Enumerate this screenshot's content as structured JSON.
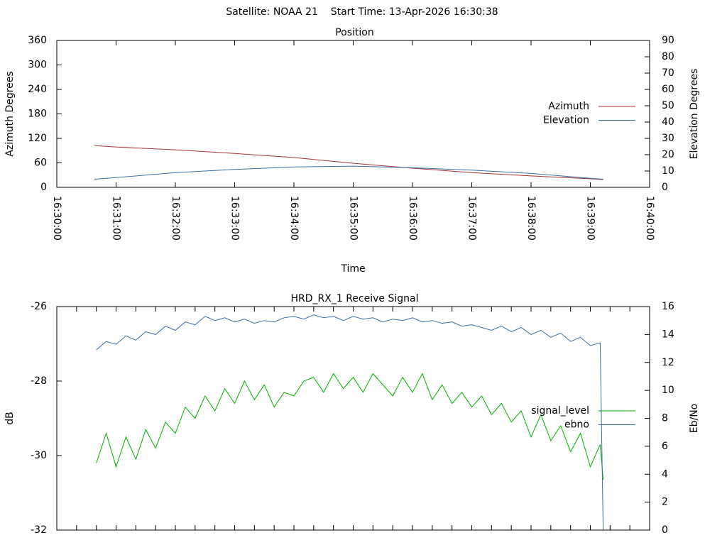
{
  "page_title": "Satellite: NOAA 21    Start Time: 13-Apr-2026 16:30:38",
  "chart_data": [
    {
      "type": "line",
      "title": "Position",
      "xlabel": "Time",
      "ylabel": "Azimuth Degrees",
      "y2label": "Elevation Degrees",
      "xlim": [
        "16:30:00",
        "16:40:00"
      ],
      "xticks": [
        "16:30:00",
        "16:31:00",
        "16:32:00",
        "16:33:00",
        "16:34:00",
        "16:35:00",
        "16:36:00",
        "16:37:00",
        "16:38:00",
        "16:39:00",
        "16:40:00"
      ],
      "xtick_labels": true,
      "ylim": [
        0,
        360
      ],
      "yticks": [
        0,
        60,
        120,
        180,
        240,
        300,
        360
      ],
      "y2lim": [
        0,
        90
      ],
      "y2ticks": [
        0,
        10,
        20,
        30,
        40,
        50,
        60,
        70,
        80,
        90
      ],
      "legend": "right",
      "x": [
        "16:30:38",
        "16:31:00",
        "16:32:00",
        "16:33:00",
        "16:34:00",
        "16:35:00",
        "16:36:00",
        "16:37:00",
        "16:38:00",
        "16:39:00",
        "16:39:13"
      ],
      "series": [
        {
          "name": "Azimuth",
          "color": "#a83232",
          "values": [
            102,
            99,
            92,
            83,
            73,
            59,
            47,
            36,
            28,
            21,
            19
          ]
        },
        {
          "name": "Elevation",
          "color": "#3a6ea5",
          "axis": "y2",
          "values": [
            5,
            6,
            9,
            11,
            12.5,
            13,
            12,
            10.5,
            8.5,
            5.5,
            5
          ]
        }
      ]
    },
    {
      "type": "line",
      "title": "HRD_RX_1 Receive Signal",
      "ylabel": "dB",
      "y2label": "Eb/No",
      "xlim": [
        "16:30:00",
        "16:40:00"
      ],
      "xticks": [
        "16:30:00",
        "16:30:20",
        "16:30:40",
        "16:31:00",
        "16:31:20",
        "16:31:40",
        "16:32:00",
        "16:32:20",
        "16:32:40",
        "16:33:00",
        "16:33:20",
        "16:33:40",
        "16:34:00",
        "16:34:20",
        "16:34:40",
        "16:35:00",
        "16:35:20",
        "16:35:40",
        "16:36:00",
        "16:36:20",
        "16:36:40",
        "16:37:00",
        "16:37:20",
        "16:37:40",
        "16:38:00",
        "16:38:20",
        "16:38:40",
        "16:39:00",
        "16:39:20",
        "16:39:40",
        "16:40:00"
      ],
      "xtick_labels": false,
      "ylim": [
        -32,
        -26
      ],
      "yticks": [
        -32,
        -30,
        -28,
        -26
      ],
      "y2lim": [
        0,
        16
      ],
      "y2ticks": [
        0,
        2,
        4,
        6,
        8,
        10,
        12,
        14,
        16
      ],
      "legend": "right",
      "x": [
        "16:30:40",
        "16:30:50",
        "16:31:00",
        "16:31:10",
        "16:31:20",
        "16:31:30",
        "16:31:40",
        "16:31:50",
        "16:32:00",
        "16:32:10",
        "16:32:20",
        "16:32:30",
        "16:32:40",
        "16:32:50",
        "16:33:00",
        "16:33:10",
        "16:33:20",
        "16:33:30",
        "16:33:40",
        "16:33:50",
        "16:34:00",
        "16:34:10",
        "16:34:20",
        "16:34:30",
        "16:34:40",
        "16:34:50",
        "16:35:00",
        "16:35:10",
        "16:35:20",
        "16:35:30",
        "16:35:40",
        "16:35:50",
        "16:36:00",
        "16:36:10",
        "16:36:20",
        "16:36:30",
        "16:36:40",
        "16:36:50",
        "16:37:00",
        "16:37:10",
        "16:37:20",
        "16:37:30",
        "16:37:40",
        "16:37:50",
        "16:38:00",
        "16:38:10",
        "16:38:20",
        "16:38:30",
        "16:38:40",
        "16:38:50",
        "16:39:00",
        "16:39:10",
        "16:39:13"
      ],
      "series": [
        {
          "name": "signal_level",
          "color": "#00b000",
          "values": [
            -30.2,
            -29.4,
            -30.3,
            -29.5,
            -30.1,
            -29.3,
            -29.8,
            -29.1,
            -29.4,
            -28.7,
            -29.0,
            -28.4,
            -28.8,
            -28.2,
            -28.6,
            -28.0,
            -28.5,
            -28.1,
            -28.7,
            -28.3,
            -28.4,
            -28.0,
            -27.9,
            -28.3,
            -27.8,
            -28.2,
            -27.9,
            -28.3,
            -27.8,
            -28.1,
            -28.4,
            -27.9,
            -28.3,
            -27.8,
            -28.5,
            -28.1,
            -28.6,
            -28.3,
            -28.7,
            -28.4,
            -28.9,
            -28.6,
            -29.1,
            -28.8,
            -29.5,
            -28.9,
            -29.6,
            -29.2,
            -29.9,
            -29.4,
            -30.3,
            -29.7,
            -30.65
          ]
        },
        {
          "name": "ebno",
          "color": "#3a6ea5",
          "axis": "y2",
          "values": [
            12.9,
            13.5,
            13.3,
            13.9,
            13.6,
            14.2,
            14.0,
            14.6,
            14.3,
            14.9,
            14.7,
            15.3,
            15.0,
            15.2,
            14.9,
            15.1,
            14.8,
            15.0,
            14.9,
            15.2,
            15.3,
            15.1,
            15.4,
            15.2,
            15.3,
            15.0,
            15.3,
            15.1,
            15.2,
            14.9,
            15.1,
            15.0,
            15.2,
            14.9,
            15.0,
            14.8,
            14.9,
            14.6,
            14.7,
            14.5,
            14.3,
            14.6,
            14.2,
            14.5,
            14.0,
            14.3,
            13.8,
            14.1,
            13.5,
            13.8,
            13.2,
            13.4,
            0
          ]
        }
      ]
    }
  ]
}
